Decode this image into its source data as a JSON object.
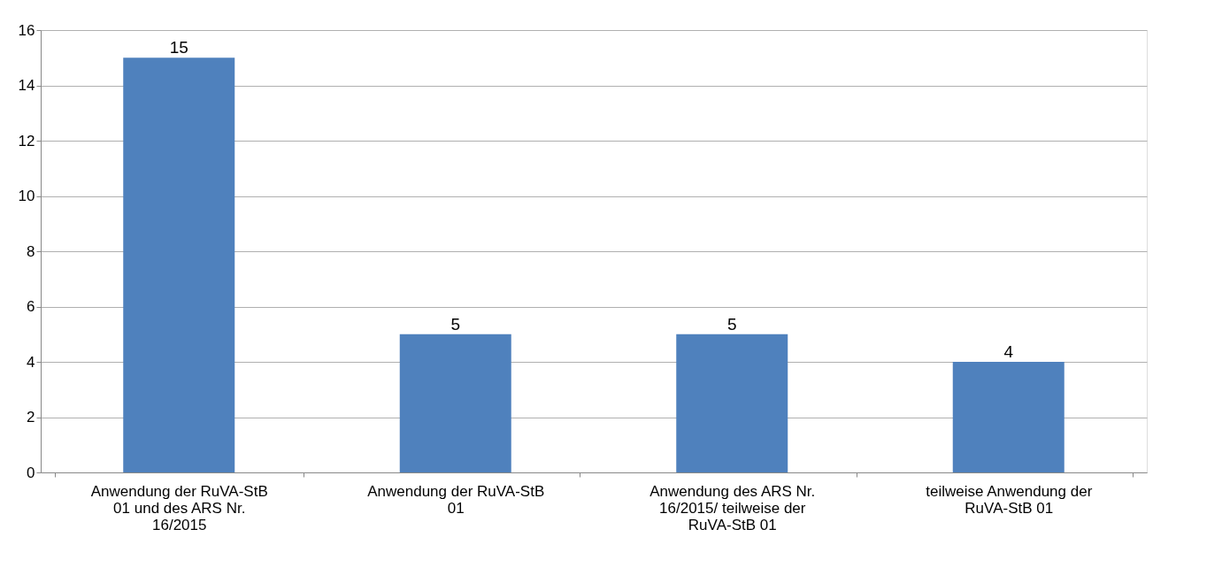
{
  "chart_data": {
    "type": "bar",
    "categories": [
      "Anwendung der RuVA-StB 01 und des ARS Nr. 16/2015",
      "Anwendung der RuVA-StB 01",
      "Anwendung des ARS Nr. 16/2015/ teilweise der RuVA-StB 01",
      "teilweise Anwendung der RuVA-StB 01"
    ],
    "values": [
      15,
      5,
      5,
      4
    ],
    "color": "#4f81bd",
    "ylim": [
      0,
      16
    ],
    "yticks": [
      0,
      2,
      4,
      6,
      8,
      10,
      12,
      14,
      16
    ],
    "grid": "y",
    "data_labels": true
  }
}
